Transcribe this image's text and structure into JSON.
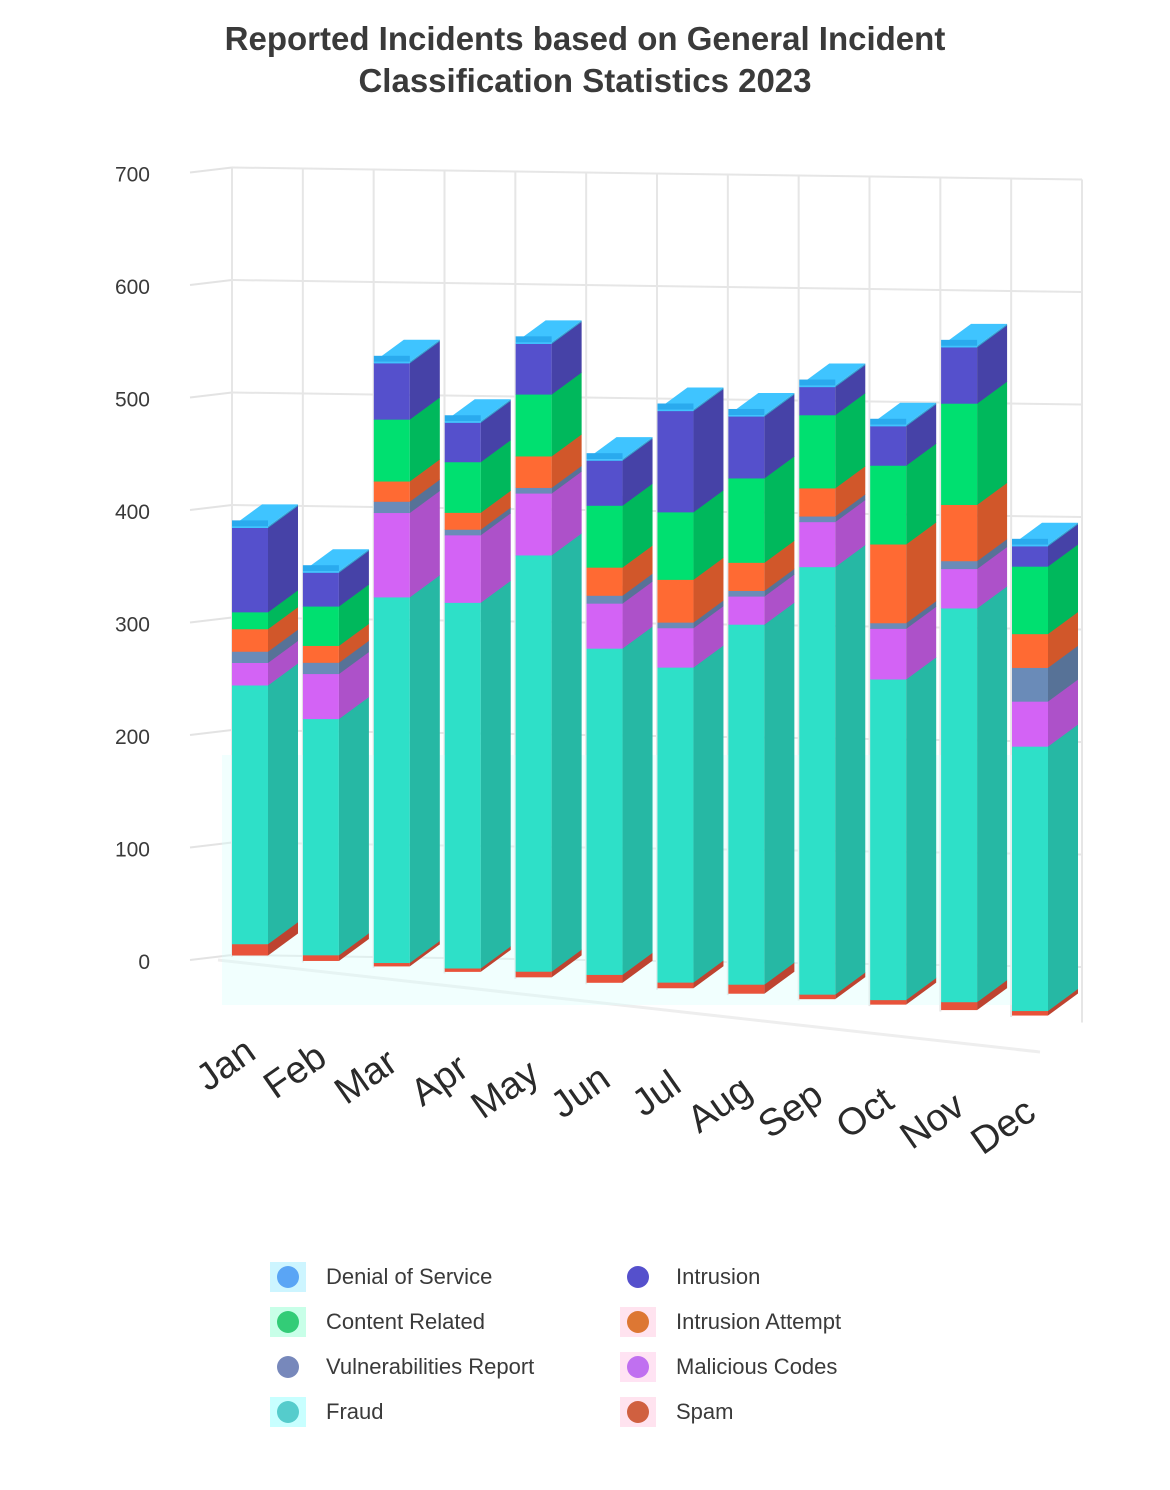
{
  "chart_data": {
    "type": "bar",
    "title": [
      "Reported Incidents based on General Incident",
      "Classification Statistics 2023"
    ],
    "categories": [
      "Jan",
      "Feb",
      "Mar",
      "Apr",
      "May",
      "Jun",
      "Jul",
      "Aug",
      "Sep",
      "Oct",
      "Nov",
      "Dec"
    ],
    "ylim": [
      0,
      700
    ],
    "yticks": [
      "0",
      "100",
      "200",
      "300",
      "400",
      "500",
      "600",
      "700"
    ],
    "stacked": true,
    "grid": true,
    "legend_position": "bottom",
    "series": [
      {
        "name": "Spam",
        "color": "#e8523a",
        "values": [
          10,
          5,
          3,
          3,
          5,
          7,
          5,
          8,
          4,
          4,
          7,
          4
        ]
      },
      {
        "name": "Fraud",
        "color": "#2ee0c8",
        "values": [
          230,
          210,
          325,
          325,
          370,
          290,
          280,
          320,
          380,
          285,
          350,
          235
        ]
      },
      {
        "name": "Malicious Codes",
        "color": "#d363f5",
        "values": [
          20,
          40,
          75,
          60,
          55,
          40,
          35,
          25,
          40,
          45,
          35,
          40
        ]
      },
      {
        "name": "Vulnerabilities Report",
        "color": "#6a8bb8",
        "values": [
          10,
          10,
          10,
          5,
          5,
          7,
          5,
          5,
          5,
          5,
          7,
          30
        ]
      },
      {
        "name": "Intrusion Attempt",
        "color": "#ff6a33",
        "values": [
          20,
          15,
          18,
          15,
          28,
          25,
          38,
          25,
          25,
          70,
          50,
          30
        ]
      },
      {
        "name": "Content Related",
        "color": "#00e070",
        "values": [
          15,
          35,
          55,
          45,
          55,
          55,
          60,
          75,
          65,
          70,
          90,
          60
        ]
      },
      {
        "name": "Intrusion",
        "color": "#5550cc",
        "values": [
          75,
          30,
          50,
          35,
          45,
          40,
          90,
          55,
          25,
          35,
          50,
          18
        ]
      },
      {
        "name": "Denial of Service",
        "color": "#3fc4ff",
        "values": [
          1,
          1,
          1,
          1,
          1,
          1,
          1,
          1,
          1,
          1,
          1,
          1
        ]
      }
    ]
  },
  "legend": {
    "items": [
      {
        "label": "Denial of Service",
        "color": "#5aa5f5",
        "halo": "#cdf5ff"
      },
      {
        "label": "Intrusion",
        "color": "#5550cc",
        "halo": "#ffffff"
      },
      {
        "label": "Content Related",
        "color": "#33cc77",
        "halo": "#c8ffe8"
      },
      {
        "label": "Intrusion Attempt",
        "color": "#dd7733",
        "halo": "#ffe3ef"
      },
      {
        "label": "Vulnerabilities Report",
        "color": "#7788bb",
        "halo": "#ffffff"
      },
      {
        "label": "Malicious Codes",
        "color": "#c070f0",
        "halo": "#ffe3f3"
      },
      {
        "label": "Fraud",
        "color": "#55cccc",
        "halo": "#c8ffff"
      },
      {
        "label": "Spam",
        "color": "#d06040",
        "halo": "#ffe3ef"
      }
    ]
  }
}
